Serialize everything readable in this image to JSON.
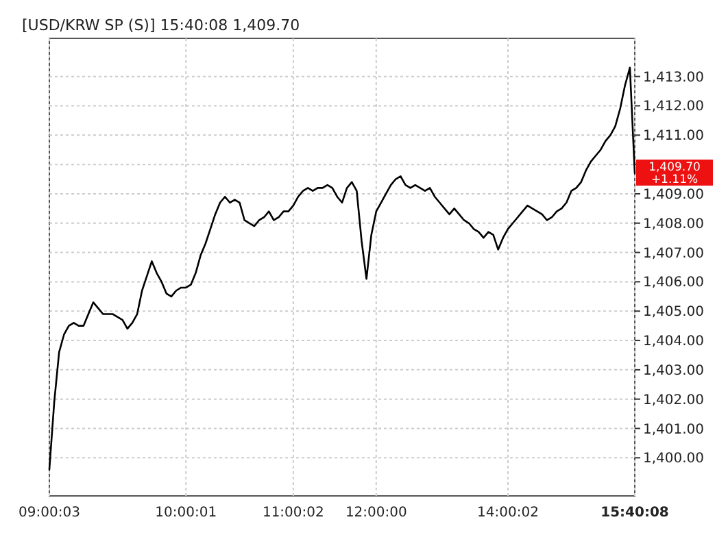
{
  "chart_data": {
    "type": "line",
    "title": "[USD/KRW SP (S)] 15:40:08  1,409.70",
    "categories": [
      "09:00:03",
      null,
      null,
      null,
      null,
      null,
      null,
      null,
      null,
      null,
      null,
      null,
      null,
      null,
      null,
      null,
      null,
      null,
      null,
      null,
      null,
      null,
      null,
      null,
      null,
      null,
      null,
      null,
      "10:00:01",
      null,
      null,
      null,
      null,
      null,
      null,
      null,
      null,
      null,
      null,
      null,
      null,
      null,
      null,
      null,
      null,
      null,
      null,
      null,
      null,
      null,
      "11:00:02",
      null,
      null,
      null,
      null,
      null,
      null,
      null,
      null,
      null,
      null,
      null,
      null,
      null,
      null,
      null,
      null,
      "12:00:00",
      null,
      null,
      null,
      null,
      null,
      null,
      null,
      null,
      null,
      null,
      null,
      null,
      null,
      null,
      null,
      null,
      null,
      null,
      null,
      null,
      null,
      null,
      null,
      null,
      null,
      null,
      "14:00:02",
      null,
      null,
      null,
      null,
      null,
      null,
      null,
      null,
      null,
      null,
      null,
      null,
      null,
      null,
      null,
      null,
      null,
      null,
      null,
      null,
      null,
      null,
      null,
      null,
      null,
      "15:40:08"
    ],
    "series": [
      {
        "color": "#000000",
        "values": [
          1399.6,
          1401.9,
          1403.6,
          1404.2,
          1404.5,
          1404.6,
          1404.5,
          1404.5,
          1404.9,
          1405.3,
          1405.1,
          1404.9,
          1404.9,
          1404.9,
          1404.8,
          1404.7,
          1404.4,
          1404.6,
          1404.9,
          1405.7,
          1406.2,
          1406.7,
          1406.3,
          1406.0,
          1405.6,
          1405.5,
          1405.7,
          1405.8,
          1405.8,
          1405.9,
          1406.3,
          1406.9,
          1407.3,
          1407.8,
          1408.3,
          1408.7,
          1408.9,
          1408.7,
          1408.8,
          1408.7,
          1408.1,
          1408.0,
          1407.9,
          1408.1,
          1408.2,
          1408.4,
          1408.1,
          1408.2,
          1408.4,
          1408.4,
          1408.6,
          1408.9,
          1409.1,
          1409.2,
          1409.1,
          1409.2,
          1409.2,
          1409.3,
          1409.2,
          1408.9,
          1408.7,
          1409.2,
          1409.4,
          1409.1,
          1407.4,
          1406.1,
          1407.6,
          1408.4,
          1408.7,
          1409.0,
          1409.3,
          1409.5,
          1409.6,
          1409.3,
          1409.2,
          1409.3,
          1409.2,
          1409.1,
          1409.2,
          1408.9,
          1408.7,
          1408.5,
          1408.3,
          1408.5,
          1408.3,
          1408.1,
          1408.0,
          1407.8,
          1407.7,
          1407.5,
          1407.7,
          1407.6,
          1407.1,
          1407.5,
          1407.8,
          1408.0,
          1408.2,
          1408.4,
          1408.6,
          1408.5,
          1408.4,
          1408.3,
          1408.1,
          1408.2,
          1408.4,
          1408.5,
          1408.7,
          1409.1,
          1409.2,
          1409.4,
          1409.8,
          1410.1,
          1410.3,
          1410.5,
          1410.8,
          1411.0,
          1411.3,
          1411.9,
          1412.7,
          1413.3,
          1409.7
        ]
      }
    ],
    "ylim": [
      1398.7,
      1414.3
    ],
    "yticks": [
      {
        "value": 1400,
        "label": "1,400.00"
      },
      {
        "value": 1401,
        "label": "1,401.00"
      },
      {
        "value": 1402,
        "label": "1,402.00"
      },
      {
        "value": 1403,
        "label": "1,403.00"
      },
      {
        "value": 1404,
        "label": "1,404.00"
      },
      {
        "value": 1405,
        "label": "1,405.00"
      },
      {
        "value": 1406,
        "label": "1,406.00"
      },
      {
        "value": 1407,
        "label": "1,407.00"
      },
      {
        "value": 1408,
        "label": "1,408.00"
      },
      {
        "value": 1409,
        "label": "1,409.00"
      },
      {
        "value": 1410,
        "label": null
      },
      {
        "value": 1411,
        "label": "1,411.00"
      },
      {
        "value": 1412,
        "label": "1,412.00"
      },
      {
        "value": 1413,
        "label": "1,413.00"
      }
    ],
    "annotations": [
      {
        "text": "1,409.70 +1.11%",
        "x": "15:40:08",
        "y": 1409.7
      }
    ],
    "grid": true,
    "line_style": "solid",
    "marker": "none"
  }
}
